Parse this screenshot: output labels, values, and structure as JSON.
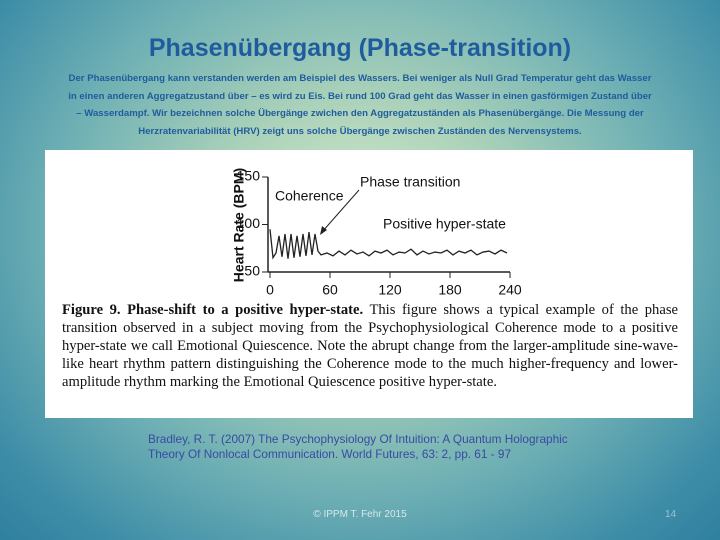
{
  "header": {
    "title": "Phasenübergang (Phase-transition)",
    "lines": [
      "Der Phasenübergang  kann verstanden werden am Beispiel des Wassers. Bei weniger als Null Grad Temperatur geht das Wasser",
      "in einen anderen Aggregatzustand über – es wird zu Eis. Bei rund 100 Grad geht das Wasser in einen gasförmigen Zustand über",
      "– Wasserdampf. Wir bezeichnen solche Übergänge zwichen den Aggregatzuständen als Phasenübergänge. Die Messung der",
      "Herzratenvariabilität (HRV) zeigt uns solche Übergänge zwischen Zuständen des Nervensystems."
    ]
  },
  "chart_data": {
    "type": "line",
    "y_label": "Heart Rate (BPM)",
    "annotations": [
      "Coherence",
      "Phase transition",
      "Positive hyper-state"
    ],
    "x": [
      0,
      3,
      6,
      9,
      12,
      15,
      18,
      21,
      24,
      27,
      30,
      33,
      36,
      39,
      42,
      45,
      48,
      51,
      57,
      63,
      69,
      75,
      81,
      87,
      93,
      99,
      105,
      111,
      117,
      123,
      129,
      135,
      141,
      147,
      153,
      159,
      165,
      171,
      177,
      183,
      189,
      195,
      201,
      207,
      213,
      219,
      225,
      231,
      237
    ],
    "values": [
      95,
      65,
      70,
      88,
      66,
      90,
      64,
      90,
      65,
      88,
      66,
      90,
      67,
      92,
      68,
      90,
      72,
      68,
      70,
      67,
      72,
      68,
      73,
      69,
      71,
      67,
      72,
      70,
      73,
      68,
      71,
      70,
      74,
      68,
      72,
      69,
      71,
      70,
      73,
      68,
      72,
      70,
      73,
      68,
      71,
      72,
      69,
      73,
      70
    ],
    "color": "#222222",
    "xlim": [
      0,
      240
    ],
    "ylim": [
      50,
      150
    ],
    "xticks": [
      0,
      60,
      120,
      180,
      240
    ],
    "yticks": [
      50,
      100,
      150
    ]
  },
  "caption": {
    "label": "Figure 9. Phase-shift to a positive hyper-state.",
    "text": "This figure shows a typical example of the phase transition observed in a subject moving from the Psychophysiological Coherence mode to a positive hyper-state we call Emotional Quiescence. Note the abrupt change from the larger-amplitude sine-wave-like heart rhythm pattern distinguishing the Coherence mode to the much higher-frequency and lower-amplitude rhythm marking the Emotional Quiescence positive hyper-state."
  },
  "citation": {
    "lines": [
      "Bradley, R. T. (2007) The Psychophysiology Of Intuition: A Quantum Holographic",
      "Theory Of Nonlocal Communication. World Futures, 63: 2, pp. 61 - 97"
    ]
  },
  "footer": "© IPPM T. Fehr 2015",
  "page_number": "14"
}
